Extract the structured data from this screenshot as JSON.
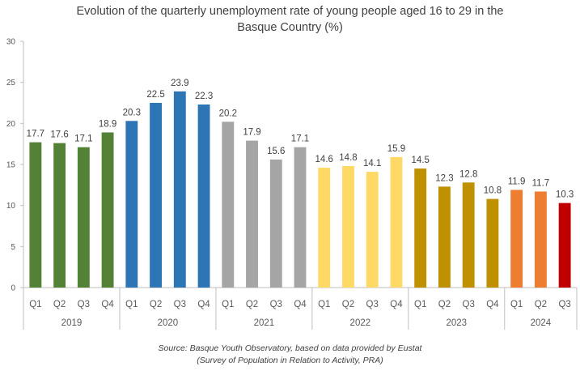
{
  "chart_data": {
    "type": "bar",
    "title_lines": [
      "Evolution of the quarterly unemployment rate of young people aged 16 to 29 in the",
      "Basque Country (%)"
    ],
    "xlabel": "",
    "ylabel": "",
    "ylim": [
      0,
      30
    ],
    "yticks": [
      0,
      5,
      10,
      15,
      20,
      25,
      30
    ],
    "grid": false,
    "legend": "none",
    "groups": [
      {
        "year": "2019",
        "quarters": [
          "Q1",
          "Q2",
          "Q3",
          "Q4"
        ],
        "values": [
          17.7,
          17.6,
          17.1,
          18.9
        ],
        "color": "#538135"
      },
      {
        "year": "2020",
        "quarters": [
          "Q1",
          "Q2",
          "Q3",
          "Q4"
        ],
        "values": [
          20.3,
          22.5,
          23.9,
          22.3
        ],
        "color": "#2E75B6"
      },
      {
        "year": "2021",
        "quarters": [
          "Q1",
          "Q2",
          "Q3",
          "Q4"
        ],
        "values": [
          20.2,
          17.9,
          15.6,
          17.1
        ],
        "color": "#A5A5A5"
      },
      {
        "year": "2022",
        "quarters": [
          "Q1",
          "Q2",
          "Q3",
          "Q4"
        ],
        "values": [
          14.6,
          14.8,
          14.1,
          15.9
        ],
        "color": "#FFD966"
      },
      {
        "year": "2023",
        "quarters": [
          "Q1",
          "Q2",
          "Q3",
          "Q4"
        ],
        "values": [
          14.5,
          12.3,
          12.8,
          10.8
        ],
        "color": "#BF9000"
      },
      {
        "year": "2024",
        "quarters": [
          "Q1",
          "Q2",
          "Q3"
        ],
        "values": [
          11.9,
          11.7,
          10.3
        ],
        "colors": [
          "#ED7D31",
          "#ED7D31",
          "#C00000"
        ]
      }
    ]
  },
  "source": {
    "line1": "Source: Basque Youth Observatory, based on data provided by Eustat",
    "line2": "(Survey of Population in Relation to Activity, PRA)"
  }
}
